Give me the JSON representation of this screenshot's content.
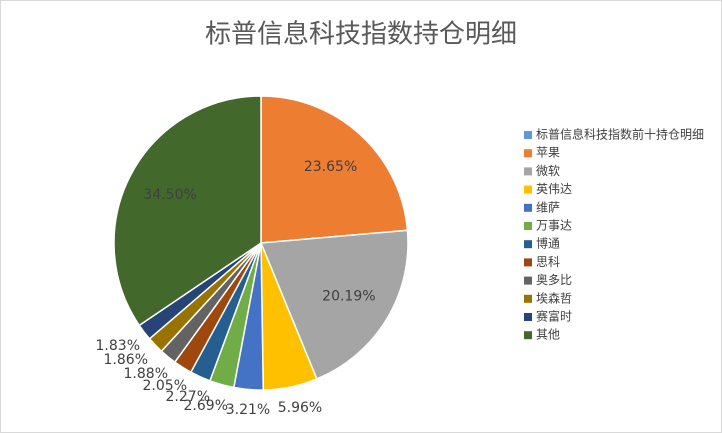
{
  "chart_data": {
    "type": "pie",
    "title": "标普信息科技指数持仓明细",
    "categories": [
      "标普信息科技指数前十持仓明细",
      "苹果",
      "微软",
      "英伟达",
      "维萨",
      "万事达",
      "博通",
      "思科",
      "奥多比",
      "埃森哲",
      "赛富时",
      "其他"
    ],
    "values": [
      null,
      23.65,
      20.19,
      5.96,
      3.21,
      2.69,
      2.27,
      2.05,
      1.88,
      1.86,
      1.83,
      34.5
    ],
    "value_labels": [
      null,
      "23.65%",
      "20.19%",
      "5.96%",
      "3.21%",
      "2.69%",
      "2.27%",
      "2.05%",
      "1.88%",
      "1.86%",
      "1.83%",
      "34.50%"
    ],
    "colors": [
      "#5B9BD5",
      "#ED7D31",
      "#A5A5A5",
      "#FFC000",
      "#4472C4",
      "#70AD47",
      "#255E91",
      "#9E480E",
      "#636363",
      "#997300",
      "#264478",
      "#43682B"
    ],
    "legend": "right"
  }
}
